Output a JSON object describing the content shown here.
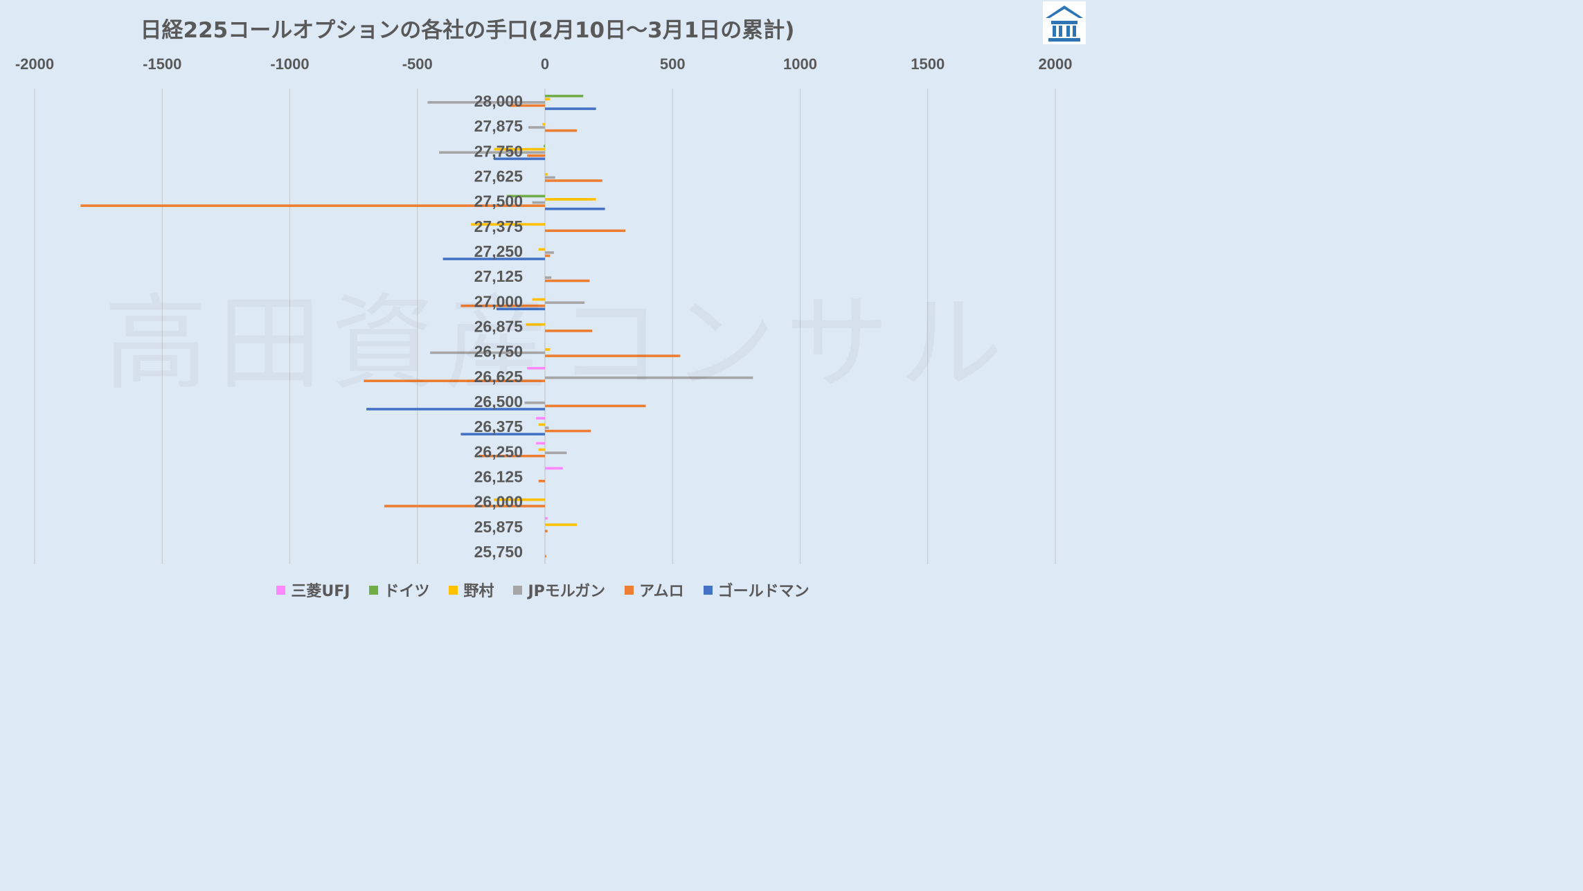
{
  "title": "日経225コールオプションの各社の手口(2月10日～3月1日の累計)",
  "watermark": "高田資産コンサル",
  "logo_icon": "temple-building-icon",
  "colors": {
    "background": "#dde9f5",
    "grid": "#c8c8c8",
    "text": "#595959",
    "logo": "#2e75b6"
  },
  "chart_data": {
    "type": "bar",
    "orientation": "horizontal",
    "title": "日経225コールオプションの各社の手口(2月10日～3月1日の累計)",
    "xlim": [
      -2000,
      2000
    ],
    "x_ticks": [
      -2000,
      -1500,
      -1000,
      -500,
      0,
      500,
      1000,
      1500,
      2000
    ],
    "x_tick_labels": [
      "-2000",
      "-1500",
      "-1000",
      "-500",
      "0",
      "500",
      "1000",
      "1500",
      "2000"
    ],
    "x_axis_position": "top",
    "grid": true,
    "legend_position": "bottom",
    "categories": [
      "28,000",
      "27,875",
      "27,750",
      "27,625",
      "27,500",
      "27,375",
      "27,250",
      "27,125",
      "27,000",
      "26,875",
      "26,750",
      "26,625",
      "26,500",
      "26,375",
      "26,250",
      "26,125",
      "26,000",
      "25,875",
      "25,750"
    ],
    "series": [
      {
        "name": "三菱UFJ",
        "color": "#ff88ff",
        "values": [
          0,
          0,
          0,
          0,
          0,
          0,
          0,
          0,
          0,
          0,
          0,
          -70,
          0,
          -35,
          -35,
          70,
          0,
          10,
          0
        ]
      },
      {
        "name": "ドイツ",
        "color": "#70ad47",
        "values": [
          150,
          0,
          -5,
          0,
          -150,
          0,
          0,
          0,
          0,
          0,
          0,
          0,
          0,
          0,
          0,
          0,
          0,
          0,
          0
        ]
      },
      {
        "name": "野村",
        "color": "#ffc000",
        "values": [
          20,
          -10,
          -200,
          10,
          200,
          -290,
          -25,
          0,
          -50,
          -75,
          20,
          0,
          0,
          -25,
          -25,
          0,
          -200,
          125,
          0
        ]
      },
      {
        "name": "JPモルガン",
        "color": "#a5a5a5",
        "values": [
          -460,
          -65,
          -415,
          40,
          -50,
          0,
          35,
          25,
          155,
          0,
          -450,
          815,
          -80,
          15,
          85,
          0,
          0,
          0,
          0
        ]
      },
      {
        "name": "アムロ",
        "color": "#ed7d31",
        "values": [
          -140,
          125,
          -70,
          225,
          -1820,
          315,
          20,
          175,
          -330,
          185,
          530,
          -710,
          395,
          180,
          -260,
          -25,
          -630,
          10,
          5
        ]
      },
      {
        "name": "ゴールドマン",
        "color": "#4472c4",
        "values": [
          200,
          0,
          -200,
          0,
          235,
          0,
          -400,
          0,
          -190,
          0,
          0,
          0,
          -700,
          -330,
          0,
          0,
          0,
          0,
          0
        ]
      }
    ]
  }
}
